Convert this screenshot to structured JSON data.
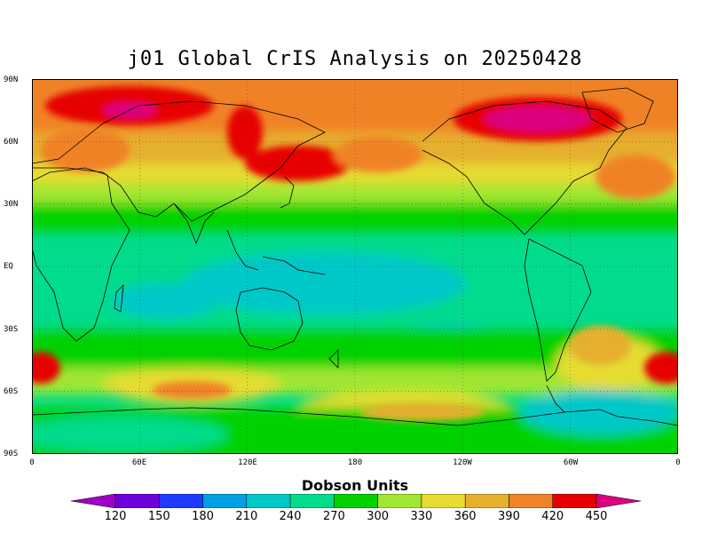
{
  "title": "j01 Global CrIS Analysis on 20250428",
  "map": {
    "lat_labels": [
      "90N",
      "60N",
      "30N",
      "EQ",
      "30S",
      "60S",
      "90S"
    ],
    "lon_labels": [
      "0",
      "60E",
      "120E",
      "180",
      "120W",
      "60W",
      "0"
    ],
    "lat_values": [
      90,
      60,
      30,
      0,
      -30,
      -60,
      -90
    ],
    "lon_values": [
      0,
      60,
      120,
      180,
      240,
      300,
      360
    ]
  },
  "colorbar": {
    "title": "Dobson Units",
    "labels": [
      "120",
      "150",
      "180",
      "210",
      "240",
      "270",
      "300",
      "330",
      "360",
      "390",
      "420",
      "450"
    ],
    "colors": [
      "#a000c8",
      "#6e00dc",
      "#1e3cff",
      "#00a0e6",
      "#00c8c8",
      "#00dc8c",
      "#00d200",
      "#a0e632",
      "#e6dc32",
      "#e6af2d",
      "#f08228",
      "#e60000",
      "#dc0080"
    ]
  },
  "ozone_colors": {
    "low": "#00c8c8",
    "mid": "#00dc8c",
    "green": "#00d200",
    "yellowgreen": "#a0e632",
    "yellow": "#e6dc32",
    "gold": "#e6af2d",
    "orange": "#f08228",
    "red": "#e60000",
    "magenta": "#dc0080"
  }
}
